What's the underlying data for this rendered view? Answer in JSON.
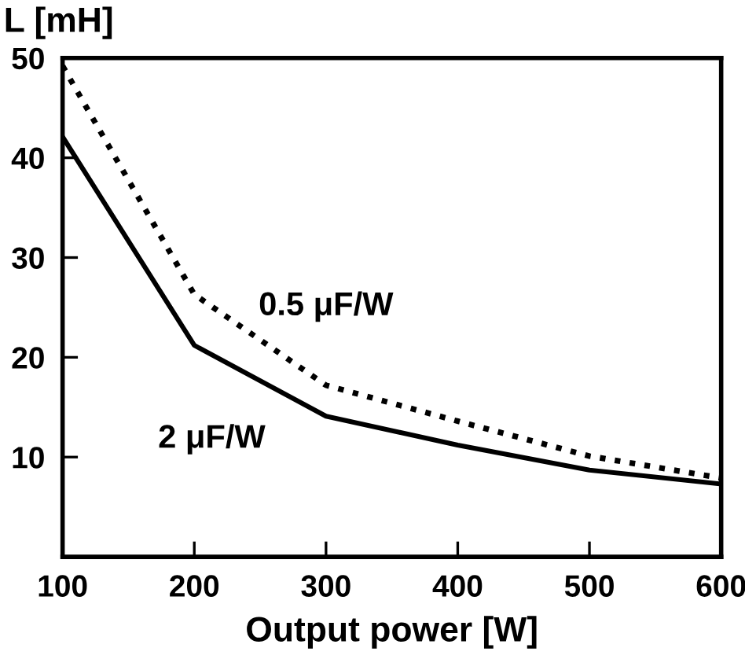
{
  "chart_data": {
    "type": "line",
    "xlabel": "Output power [W]",
    "ylabel": "L [mH]",
    "x": [
      100,
      200,
      300,
      400,
      500,
      600
    ],
    "series": [
      {
        "name": "0.5 μF/W",
        "color": "#000000",
        "line_style": "dotted",
        "values": [
          49.2,
          26.3,
          17.2,
          13.6,
          10.1,
          7.9
        ]
      },
      {
        "name": "2 μF/W",
        "color": "#000000",
        "line_style": "solid",
        "values": [
          42.1,
          21.2,
          14.1,
          11.2,
          8.7,
          7.3
        ]
      }
    ],
    "xlim": [
      100,
      600
    ],
    "xticks": [
      100,
      200,
      300,
      400,
      500,
      600
    ],
    "ylim": [
      0,
      50
    ],
    "yticks": [
      {
        "value": 0,
        "label": null
      },
      10,
      20,
      30,
      40,
      50
    ],
    "grid": false,
    "legend": false,
    "marker": "none"
  }
}
